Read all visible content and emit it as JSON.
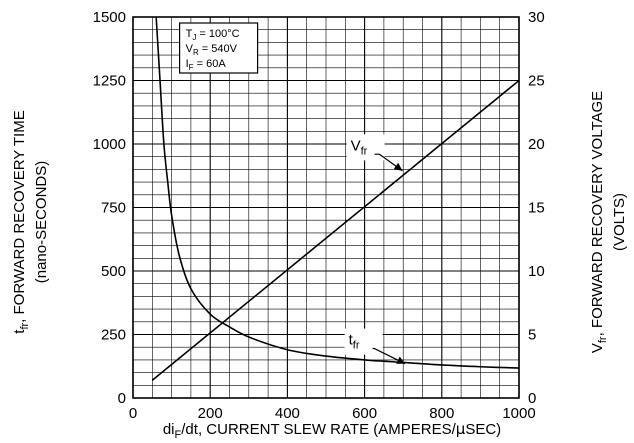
{
  "chart_data": {
    "type": "line",
    "x_axis": {
      "label_parts": [
        "di",
        "F",
        "/dt, CURRENT SLEW RATE (AMPERES/",
        "μ",
        "SEC)"
      ],
      "range": [
        0,
        1000
      ],
      "ticks": [
        0,
        200,
        400,
        600,
        800,
        1000
      ],
      "tick_labels": [
        "0",
        "200",
        "400",
        "600",
        "800",
        "1000"
      ],
      "minor_step": 50
    },
    "y_left": {
      "label_line1_parts": [
        "t",
        "fr",
        ", FORWARD RECOVERY TIME"
      ],
      "label_line2": "(nano-SECONDS)",
      "range": [
        0,
        1500
      ],
      "ticks": [
        0,
        250,
        500,
        750,
        1000,
        1250,
        1500
      ],
      "tick_labels": [
        "0",
        "250",
        "500",
        "750",
        "1000",
        "1250",
        "1500"
      ],
      "minor_step": 50
    },
    "y_right": {
      "label_line1_parts": [
        "V",
        "fr",
        ", FORWARD RECOVERY VOLTAGE"
      ],
      "label_line2": "(VOLTS)",
      "range": [
        0,
        30
      ],
      "ticks": [
        0,
        5,
        10,
        15,
        20,
        25,
        30
      ],
      "tick_labels": [
        "0",
        "5",
        "10",
        "15",
        "20",
        "25",
        "30"
      ]
    },
    "legend": {
      "lines": [
        {
          "main": "T",
          "sub": "J",
          "rest": " = 100°C"
        },
        {
          "main": "V",
          "sub": "R",
          "rest": " = 540V"
        },
        {
          "main": "I",
          "sub": "F",
          "rest": " = 60A"
        }
      ],
      "placement": "top-left"
    },
    "series": [
      {
        "name_main": "t",
        "name_sub": "fr",
        "axis": "left",
        "x": [
          60,
          70,
          80,
          90,
          100,
          120,
          150,
          200,
          250,
          300,
          400,
          500,
          600,
          700,
          800,
          900,
          1000
        ],
        "y": [
          1500,
          1250,
          1000,
          850,
          720,
          560,
          430,
          330,
          280,
          240,
          190,
          165,
          150,
          140,
          130,
          123,
          118
        ]
      },
      {
        "name_main": "V",
        "name_sub": "fr",
        "axis": "right",
        "x": [
          50,
          1000
        ],
        "y": [
          1.4,
          25
        ]
      }
    ],
    "grid": true
  }
}
